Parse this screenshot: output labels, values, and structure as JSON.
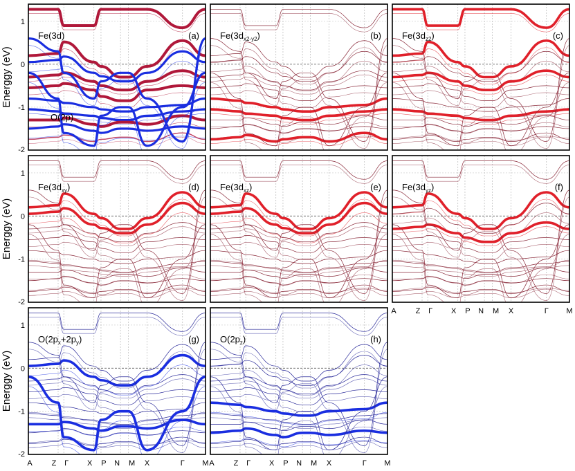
{
  "chart_data": {
    "type": "line",
    "ylabel": "Energgy (eV)",
    "ylim": [
      -2,
      1.4
    ],
    "yticks": [
      1,
      0,
      -1,
      -2
    ],
    "kpath": [
      "A",
      "Z",
      "Γ",
      "X",
      "P",
      "N",
      "M",
      "X",
      "Γ",
      "M"
    ],
    "kpos": [
      0,
      0.168,
      0.2,
      0.37,
      0.41,
      0.52,
      0.565,
      0.67,
      0.87,
      1.0
    ],
    "fermi_level": 0,
    "colors": {
      "fe": "#e0202a",
      "fe_dark": "#b0183a",
      "o": "#1a2ee0",
      "o_dark": "#2a2a9a",
      "thin": "#8a2a3a"
    },
    "panels": [
      {
        "id": "a",
        "tag": "(a)",
        "orbital": "Fe(3d)",
        "sub": "",
        "orbital2": "O(2p)"
      },
      {
        "id": "b",
        "tag": "(b)",
        "orbital": "Fe(3d",
        "sub": "x2-y2",
        "orbital2": ""
      },
      {
        "id": "c",
        "tag": "(c)",
        "orbital": "Fe(3d",
        "sub": "z2",
        "orbital2": ""
      },
      {
        "id": "d",
        "tag": "(d)",
        "orbital": "Fe(3d",
        "sub": "xy",
        "orbital2": ""
      },
      {
        "id": "e",
        "tag": "(e)",
        "orbital": "Fe(3d",
        "sub": "xz",
        "orbital2": ""
      },
      {
        "id": "f",
        "tag": "(f)",
        "orbital": "Fe(3d",
        "sub": "yz",
        "orbital2": ""
      },
      {
        "id": "g",
        "tag": "(g)",
        "orbital": "O(2p",
        "sub": "x",
        "orbital_mid": "+2p",
        "sub2": "y",
        "orbital2": ""
      },
      {
        "id": "h",
        "tag": "(h)",
        "orbital": "O(2p",
        "sub": "z",
        "orbital2": ""
      }
    ],
    "bands": [
      {
        "name": "b1",
        "y": [
          1.28,
          1.28,
          0.9,
          0.9,
          1.28,
          1.28,
          1.28,
          1.28,
          0.85,
          1.28
        ]
      },
      {
        "name": "b2",
        "y": [
          0.2,
          0.25,
          0.52,
          0.05,
          -0.05,
          -0.3,
          -0.3,
          -0.05,
          0.55,
          0.2
        ]
      },
      {
        "name": "b3",
        "y": [
          0.05,
          0.1,
          0.18,
          -0.2,
          -0.28,
          -0.4,
          -0.4,
          -0.2,
          0.3,
          0.05
        ]
      },
      {
        "name": "b4",
        "y": [
          -0.3,
          -0.25,
          -0.2,
          -0.4,
          -0.5,
          -0.6,
          -0.6,
          -0.4,
          -0.15,
          -0.3
        ]
      },
      {
        "name": "b5",
        "y": [
          -0.55,
          -0.5,
          -0.45,
          -0.6,
          -0.75,
          -0.85,
          -0.85,
          -0.6,
          -0.5,
          -0.55
        ]
      },
      {
        "name": "b6",
        "y": [
          -0.8,
          -0.85,
          -0.9,
          -1.0,
          -1.05,
          -1.1,
          -1.1,
          -1.0,
          -0.95,
          -0.8
        ]
      },
      {
        "name": "b7",
        "y": [
          -1.05,
          -1.1,
          -1.15,
          -1.2,
          -1.25,
          -1.3,
          -1.3,
          -1.2,
          -1.1,
          -1.05
        ]
      },
      {
        "name": "b8",
        "y": [
          -1.3,
          -1.3,
          -1.25,
          -1.4,
          -1.45,
          -1.35,
          -1.35,
          -1.4,
          -1.2,
          -1.3
        ]
      },
      {
        "name": "b9",
        "y": [
          -1.5,
          -1.45,
          -1.4,
          -1.55,
          -1.6,
          -1.5,
          -1.5,
          -1.55,
          -1.45,
          -1.5
        ]
      },
      {
        "name": "b10",
        "y": [
          -1.75,
          -1.7,
          -1.65,
          -1.8,
          -1.75,
          -1.7,
          -1.7,
          -1.8,
          -1.6,
          -1.75
        ]
      },
      {
        "name": "b11",
        "y": [
          0.6,
          0.3,
          -0.2,
          -0.8,
          -0.4,
          -0.2,
          -0.2,
          -0.8,
          -1.8,
          0.6
        ]
      },
      {
        "name": "b12",
        "y": [
          -0.2,
          -0.8,
          -1.6,
          -1.9,
          -1.2,
          -1.0,
          -1.0,
          -1.9,
          -1.0,
          -0.2
        ]
      }
    ]
  }
}
